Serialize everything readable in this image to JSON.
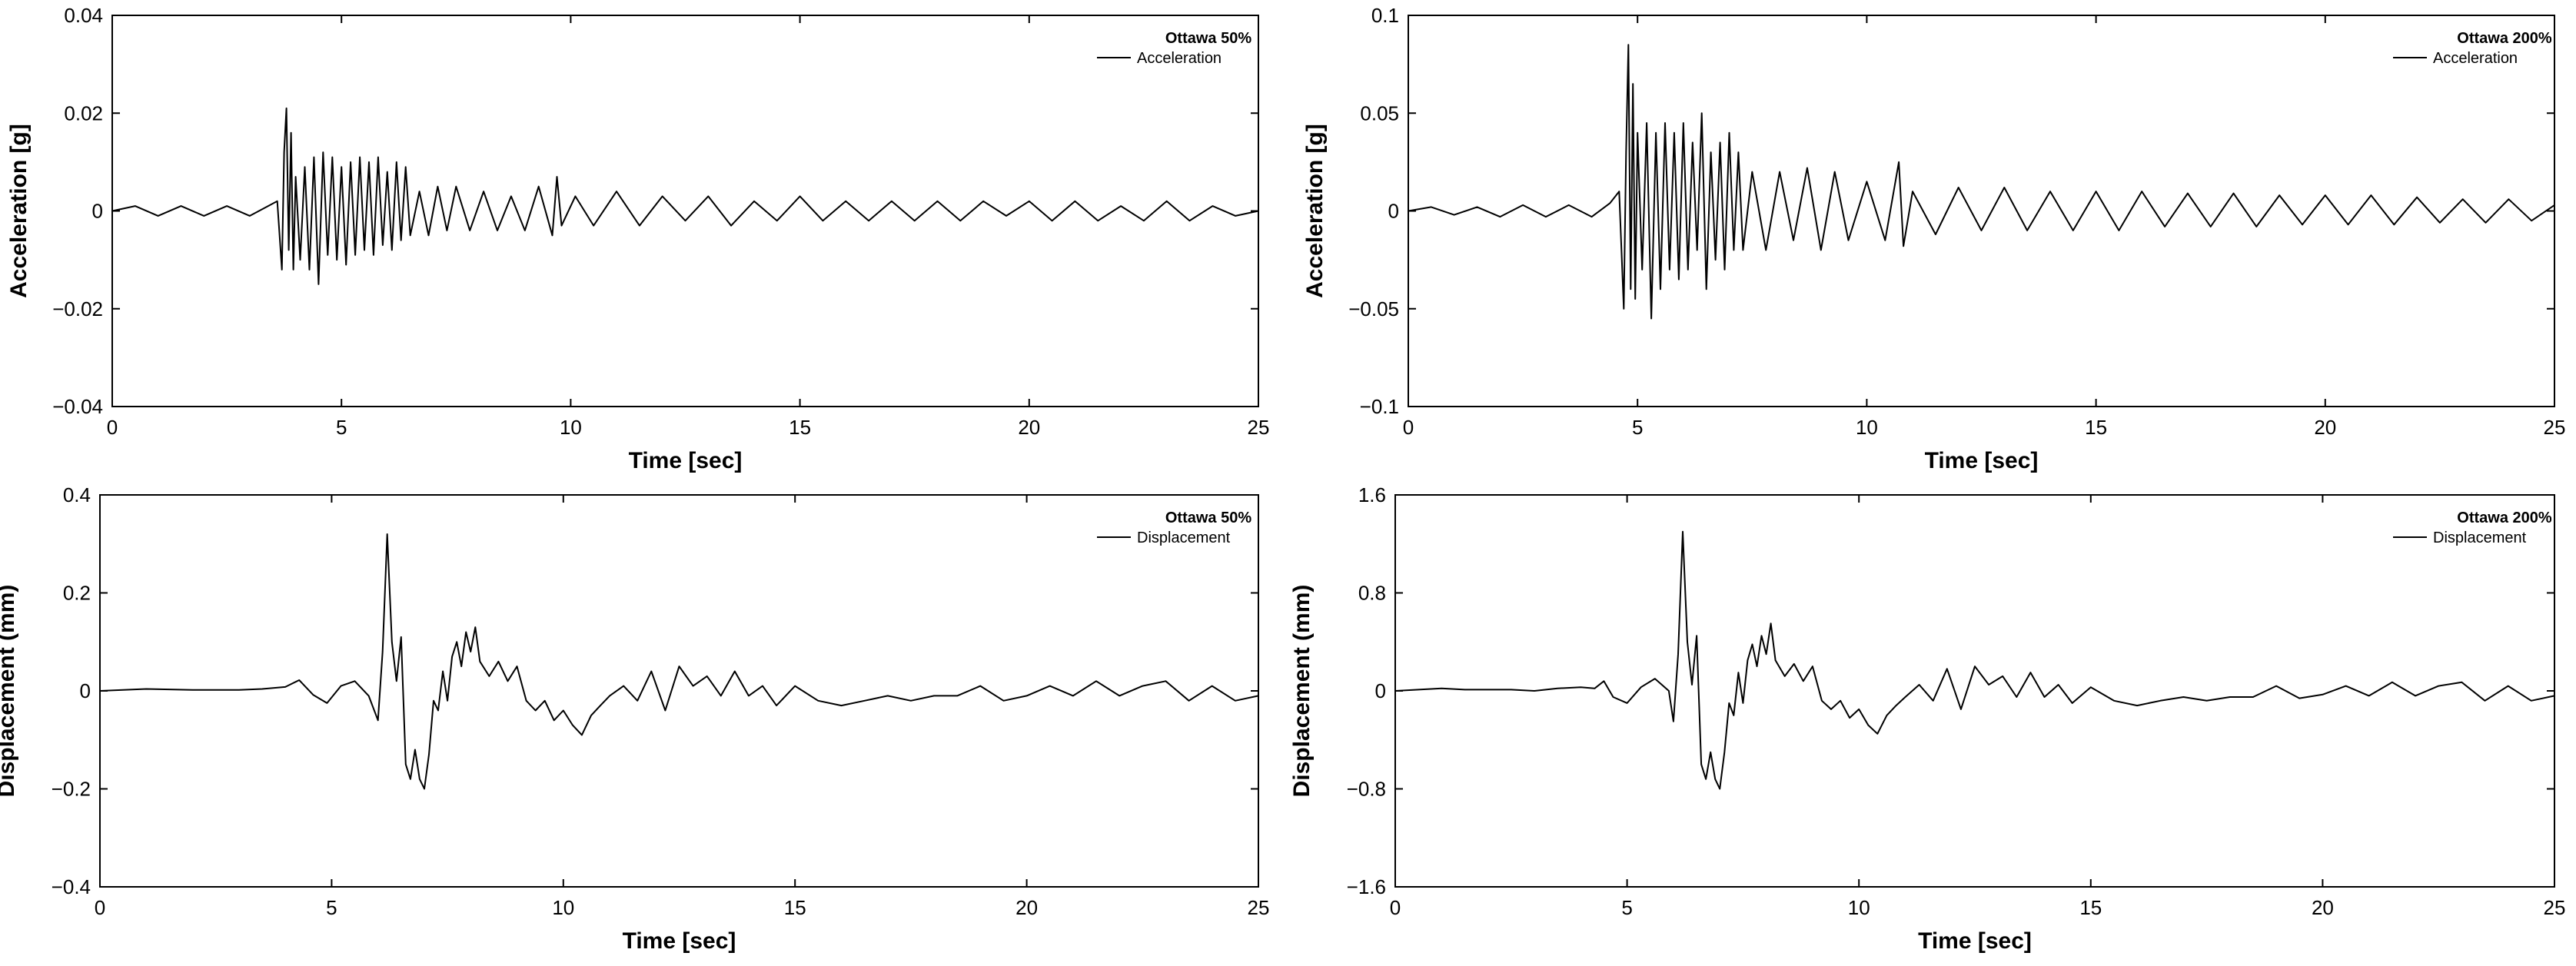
{
  "chart_data": [
    {
      "type": "line",
      "legend_title": "Ottawa 50%",
      "legend_position": "top-right",
      "grid": false,
      "xlabel": "Time [sec]",
      "ylabel": "Acceleration [g]",
      "xlim": [
        0,
        25
      ],
      "ylim": [
        -0.04,
        0.04
      ],
      "xticks": [
        "0",
        "5",
        "10",
        "15",
        "20",
        "25"
      ],
      "yticks": [
        "0.04",
        "0.02",
        "0",
        "−0.02",
        "−0.04"
      ],
      "series": [
        {
          "name": "Acceleration",
          "color": "#000000",
          "x": [
            0,
            0.5,
            1,
            1.5,
            2,
            2.5,
            3,
            3.4,
            3.6,
            3.7,
            3.75,
            3.8,
            3.85,
            3.9,
            3.95,
            4.0,
            4.1,
            4.2,
            4.3,
            4.4,
            4.5,
            4.6,
            4.7,
            4.8,
            4.9,
            5.0,
            5.1,
            5.2,
            5.3,
            5.4,
            5.5,
            5.6,
            5.7,
            5.8,
            5.9,
            6.0,
            6.1,
            6.2,
            6.3,
            6.4,
            6.5,
            6.7,
            6.9,
            7.1,
            7.3,
            7.5,
            7.8,
            8.1,
            8.4,
            8.7,
            9.0,
            9.3,
            9.6,
            9.7,
            9.8,
            10.1,
            10.5,
            11,
            11.5,
            12,
            12.5,
            13,
            13.5,
            14,
            14.5,
            15,
            15.5,
            16,
            16.5,
            17,
            17.5,
            18,
            18.5,
            19,
            19.5,
            20,
            20.5,
            21,
            21.5,
            22,
            22.5,
            23,
            23.5,
            24,
            24.5,
            25
          ],
          "y": [
            0,
            0.001,
            -0.001,
            0.001,
            -0.001,
            0.001,
            -0.001,
            0.001,
            0.002,
            -0.012,
            0.012,
            0.021,
            -0.008,
            0.016,
            -0.012,
            0.007,
            -0.01,
            0.009,
            -0.012,
            0.011,
            -0.015,
            0.012,
            -0.009,
            0.011,
            -0.01,
            0.009,
            -0.011,
            0.01,
            -0.009,
            0.011,
            -0.008,
            0.01,
            -0.009,
            0.011,
            -0.007,
            0.008,
            -0.008,
            0.01,
            -0.006,
            0.009,
            -0.005,
            0.004,
            -0.005,
            0.005,
            -0.004,
            0.005,
            -0.004,
            0.004,
            -0.004,
            0.003,
            -0.004,
            0.005,
            -0.005,
            0.007,
            -0.003,
            0.003,
            -0.003,
            0.004,
            -0.003,
            0.003,
            -0.002,
            0.003,
            -0.003,
            0.002,
            -0.002,
            0.003,
            -0.002,
            0.002,
            -0.002,
            0.002,
            -0.002,
            0.002,
            -0.002,
            0.002,
            -0.001,
            0.002,
            -0.002,
            0.002,
            -0.002,
            0.001,
            -0.002,
            0.002,
            -0.002,
            0.001,
            -0.001,
            0
          ]
        }
      ]
    },
    {
      "type": "line",
      "legend_title": "Ottawa 200%",
      "legend_position": "top-right",
      "grid": false,
      "xlabel": "Time [sec]",
      "ylabel": "Acceleration [g]",
      "xlim": [
        0,
        25
      ],
      "ylim": [
        -0.1,
        0.1
      ],
      "xticks": [
        "0",
        "5",
        "10",
        "15",
        "20",
        "25"
      ],
      "yticks": [
        "0.1",
        "0.05",
        "0",
        "−0.05",
        "−0.1"
      ],
      "series": [
        {
          "name": "Acceleration",
          "color": "#000000",
          "x": [
            0,
            0.5,
            1,
            1.5,
            2,
            2.5,
            3,
            3.5,
            4,
            4.4,
            4.6,
            4.7,
            4.75,
            4.8,
            4.85,
            4.9,
            4.95,
            5.0,
            5.1,
            5.2,
            5.3,
            5.4,
            5.5,
            5.6,
            5.7,
            5.8,
            5.9,
            6.0,
            6.1,
            6.2,
            6.3,
            6.4,
            6.5,
            6.6,
            6.7,
            6.8,
            6.9,
            7.0,
            7.1,
            7.2,
            7.3,
            7.5,
            7.8,
            8.1,
            8.4,
            8.7,
            9.0,
            9.3,
            9.6,
            10.0,
            10.4,
            10.7,
            10.8,
            11.0,
            11.5,
            12,
            12.5,
            13,
            13.5,
            14,
            14.5,
            15,
            15.5,
            16,
            16.5,
            17,
            17.5,
            18,
            18.5,
            19,
            19.5,
            20,
            20.5,
            21,
            21.5,
            22,
            22.5,
            23,
            23.5,
            24,
            24.5,
            25
          ],
          "y": [
            0,
            0.002,
            -0.002,
            0.002,
            -0.003,
            0.003,
            -0.003,
            0.003,
            -0.003,
            0.004,
            0.01,
            -0.05,
            0.03,
            0.085,
            -0.04,
            0.065,
            -0.045,
            0.04,
            -0.03,
            0.045,
            -0.055,
            0.04,
            -0.04,
            0.045,
            -0.03,
            0.04,
            -0.035,
            0.045,
            -0.03,
            0.035,
            -0.02,
            0.05,
            -0.04,
            0.03,
            -0.025,
            0.035,
            -0.03,
            0.04,
            -0.02,
            0.03,
            -0.02,
            0.02,
            -0.02,
            0.02,
            -0.015,
            0.022,
            -0.02,
            0.02,
            -0.015,
            0.015,
            -0.015,
            0.025,
            -0.018,
            0.01,
            -0.012,
            0.012,
            -0.01,
            0.012,
            -0.01,
            0.01,
            -0.01,
            0.01,
            -0.01,
            0.01,
            -0.008,
            0.009,
            -0.008,
            0.009,
            -0.008,
            0.008,
            -0.007,
            0.008,
            -0.007,
            0.008,
            -0.007,
            0.007,
            -0.006,
            0.006,
            -0.006,
            0.006,
            -0.005,
            0.003
          ]
        }
      ]
    },
    {
      "type": "line",
      "legend_title": "Ottawa 50%",
      "legend_position": "top-right",
      "grid": false,
      "xlabel": "Time [sec]",
      "ylabel": "Displacement (mm)",
      "xlim": [
        0,
        25
      ],
      "ylim": [
        -0.4,
        0.4
      ],
      "xticks": [
        "0",
        "5",
        "10",
        "15",
        "20",
        "25"
      ],
      "yticks": [
        "0.4",
        "0.2",
        "0",
        "−0.2",
        "−0.4"
      ],
      "series": [
        {
          "name": "Displacement",
          "color": "#000000",
          "x": [
            0,
            0.5,
            1,
            1.5,
            2,
            2.5,
            3,
            3.5,
            4,
            4.3,
            4.6,
            4.9,
            5.2,
            5.5,
            5.8,
            6.0,
            6.1,
            6.2,
            6.3,
            6.4,
            6.5,
            6.6,
            6.7,
            6.8,
            6.9,
            7.0,
            7.1,
            7.2,
            7.3,
            7.4,
            7.5,
            7.6,
            7.7,
            7.8,
            7.9,
            8.0,
            8.1,
            8.2,
            8.4,
            8.6,
            8.8,
            9.0,
            9.2,
            9.4,
            9.6,
            9.8,
            10.0,
            10.2,
            10.4,
            10.6,
            10.8,
            11.0,
            11.3,
            11.6,
            11.9,
            12.2,
            12.5,
            12.8,
            13.1,
            13.4,
            13.7,
            14.0,
            14.3,
            14.6,
            15.0,
            15.5,
            16,
            16.5,
            17,
            17.5,
            18,
            18.5,
            19,
            19.5,
            20,
            20.5,
            21,
            21.5,
            22,
            22.5,
            23,
            23.5,
            24,
            24.5,
            25
          ],
          "y": [
            0,
            0.002,
            0.004,
            0.003,
            0.002,
            0.002,
            0.002,
            0.004,
            0.008,
            0.022,
            -0.008,
            -0.025,
            0.01,
            0.02,
            -0.01,
            -0.06,
            0.08,
            0.32,
            0.1,
            0.02,
            0.11,
            -0.15,
            -0.18,
            -0.12,
            -0.18,
            -0.2,
            -0.13,
            -0.02,
            -0.04,
            0.04,
            -0.02,
            0.07,
            0.1,
            0.05,
            0.12,
            0.08,
            0.13,
            0.06,
            0.03,
            0.06,
            0.02,
            0.05,
            -0.02,
            -0.04,
            -0.02,
            -0.06,
            -0.04,
            -0.07,
            -0.09,
            -0.05,
            -0.03,
            -0.01,
            0.01,
            -0.02,
            0.04,
            -0.04,
            0.05,
            0.01,
            0.03,
            -0.01,
            0.04,
            -0.01,
            0.01,
            -0.03,
            0.01,
            -0.02,
            -0.03,
            -0.02,
            -0.01,
            -0.02,
            -0.01,
            -0.01,
            0.01,
            -0.02,
            -0.01,
            0.01,
            -0.01,
            0.02,
            -0.01,
            0.01,
            0.02,
            -0.02,
            0.01,
            -0.02,
            -0.01
          ]
        }
      ]
    },
    {
      "type": "line",
      "legend_title": "Ottawa 200%",
      "legend_position": "top-right",
      "grid": false,
      "xlabel": "Time [sec]",
      "ylabel": "Displacement (mm)",
      "xlim": [
        0,
        25
      ],
      "ylim": [
        -1.6,
        1.6
      ],
      "xticks": [
        "0",
        "5",
        "10",
        "15",
        "20",
        "25"
      ],
      "yticks": [
        "1.6",
        "0.8",
        "0",
        "−0.8",
        "−1.6"
      ],
      "series": [
        {
          "name": "Displacement",
          "color": "#000000",
          "x": [
            0,
            0.5,
            1,
            1.5,
            2,
            2.5,
            3,
            3.5,
            4,
            4.3,
            4.5,
            4.7,
            5.0,
            5.3,
            5.6,
            5.9,
            6.0,
            6.1,
            6.2,
            6.3,
            6.4,
            6.5,
            6.6,
            6.7,
            6.8,
            6.9,
            7.0,
            7.1,
            7.2,
            7.3,
            7.4,
            7.5,
            7.6,
            7.7,
            7.8,
            7.9,
            8.0,
            8.1,
            8.2,
            8.4,
            8.6,
            8.8,
            9.0,
            9.2,
            9.4,
            9.6,
            9.8,
            10.0,
            10.2,
            10.4,
            10.6,
            10.8,
            11.0,
            11.3,
            11.6,
            11.9,
            12.2,
            12.5,
            12.8,
            13.1,
            13.4,
            13.7,
            14.0,
            14.3,
            14.6,
            15.0,
            15.5,
            16,
            16.5,
            17,
            17.5,
            18,
            18.5,
            19,
            19.5,
            20,
            20.5,
            21,
            21.5,
            22,
            22.5,
            23,
            23.5,
            24,
            24.5,
            25
          ],
          "y": [
            0,
            0.01,
            0.02,
            0.01,
            0.01,
            0.01,
            0.0,
            0.02,
            0.03,
            0.02,
            0.08,
            -0.05,
            -0.1,
            0.03,
            0.1,
            0.0,
            -0.25,
            0.3,
            1.3,
            0.4,
            0.05,
            0.45,
            -0.6,
            -0.72,
            -0.5,
            -0.72,
            -0.8,
            -0.5,
            -0.1,
            -0.2,
            0.15,
            -0.1,
            0.25,
            0.38,
            0.2,
            0.45,
            0.3,
            0.55,
            0.25,
            0.12,
            0.22,
            0.08,
            0.2,
            -0.08,
            -0.15,
            -0.08,
            -0.22,
            -0.15,
            -0.28,
            -0.35,
            -0.2,
            -0.12,
            -0.05,
            0.05,
            -0.08,
            0.18,
            -0.15,
            0.2,
            0.05,
            0.12,
            -0.05,
            0.15,
            -0.05,
            0.05,
            -0.1,
            0.03,
            -0.08,
            -0.12,
            -0.08,
            -0.05,
            -0.08,
            -0.05,
            -0.05,
            0.04,
            -0.06,
            -0.03,
            0.04,
            -0.04,
            0.07,
            -0.04,
            0.04,
            0.07,
            -0.08,
            0.04,
            -0.08,
            -0.04
          ]
        }
      ]
    }
  ]
}
